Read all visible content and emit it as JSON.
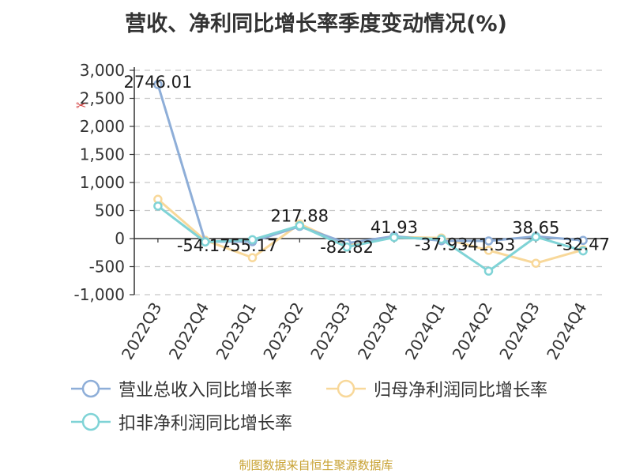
{
  "chart_data": {
    "type": "line",
    "title": "营收、净利同比增长率季度变动情况(%)",
    "categories": [
      "2022Q3",
      "2022Q4",
      "2023Q1",
      "2023Q2",
      "2023Q3",
      "2023Q4",
      "2024Q1",
      "2024Q2",
      "2024Q3",
      "2024Q4"
    ],
    "ylim": [
      -1000,
      3000
    ],
    "yticks": [
      -1000,
      -500,
      0,
      500,
      1000,
      1500,
      2000,
      2500,
      3000
    ],
    "ytick_labels": [
      "-1,000",
      "-500",
      "0",
      "500",
      "1,000",
      "1,500",
      "2,000",
      "2,500",
      "3,000"
    ],
    "grid": true,
    "legend_position": "bottom",
    "series": [
      {
        "name": "营业总收入同比增长率",
        "color": "#8eaed8",
        "values": [
          2746.01,
          -54.17,
          -55.17,
          217.88,
          -82.82,
          41.93,
          -37.93,
          -41.53,
          38.65,
          -32.47
        ],
        "labels": [
          "2746.01",
          "-54.17",
          "-55.17",
          "217.88",
          "-82.82",
          "41.93",
          "-37.93",
          "-41.53",
          "38.65",
          "-32.47"
        ]
      },
      {
        "name": "归母净利润同比增长率",
        "color": "#f8d89a",
        "values": [
          700,
          -30,
          -340,
          260,
          -120,
          30,
          10,
          -210,
          -440,
          -200
        ]
      },
      {
        "name": "扣非净利润同比增长率",
        "color": "#7fd3d6",
        "values": [
          580,
          -60,
          -20,
          230,
          -150,
          20,
          -10,
          -580,
          30,
          -220
        ]
      }
    ]
  },
  "source_note": "制图数据来自恒生聚源数据库"
}
